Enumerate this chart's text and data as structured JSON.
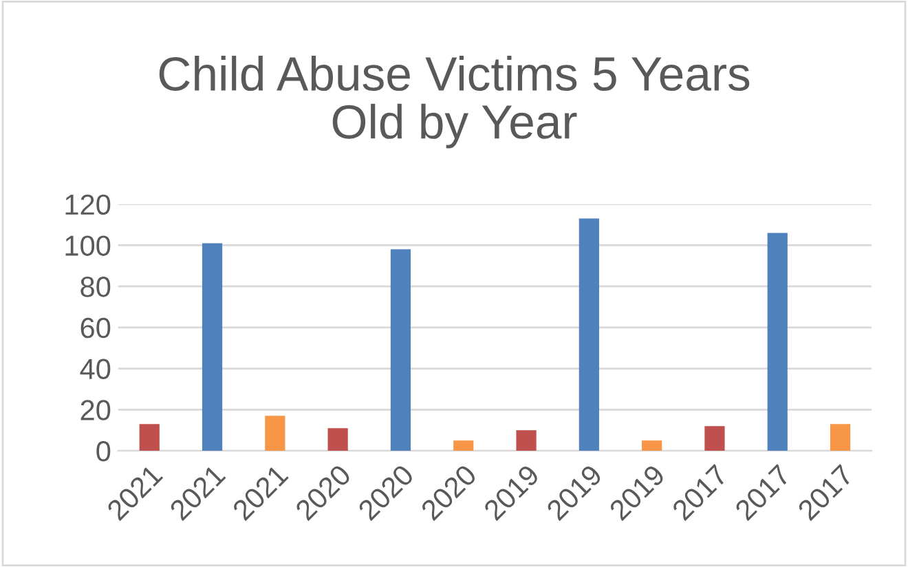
{
  "chart_data": {
    "type": "bar",
    "title": "Child Abuse Victims 5 Years\nOld by Year",
    "categories": [
      "2021",
      "2021",
      "2021",
      "2020",
      "2020",
      "2020",
      "2019",
      "2019",
      "2019",
      "2017",
      "2017",
      "2017"
    ],
    "values": [
      13,
      101,
      17,
      11,
      98,
      5,
      10,
      113,
      5,
      12,
      106,
      13
    ],
    "colors": [
      "#c0504d",
      "#4f81bd",
      "#f79646",
      "#c0504d",
      "#4f81bd",
      "#f79646",
      "#c0504d",
      "#4f81bd",
      "#f79646",
      "#c0504d",
      "#4f81bd",
      "#f79646"
    ],
    "ylim": [
      0,
      120
    ],
    "yticks": [
      0,
      20,
      40,
      60,
      80,
      100,
      120
    ],
    "grid": "y"
  }
}
